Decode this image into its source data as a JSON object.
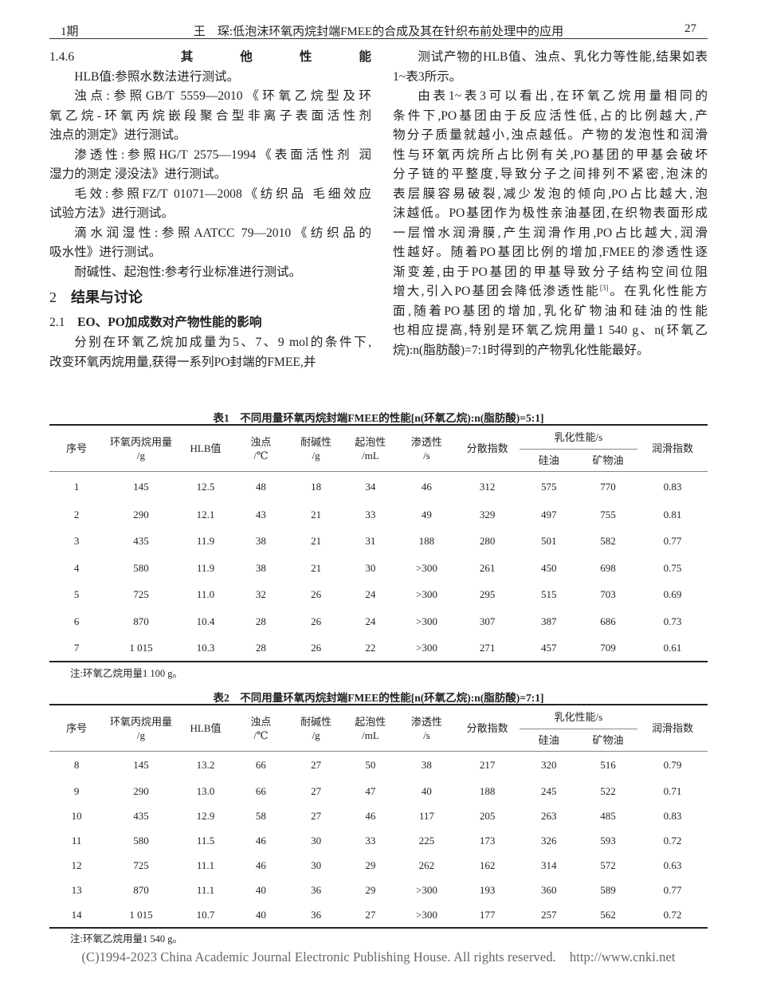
{
  "header": {
    "issue": "1期",
    "running_title": "王　琛:低泡沫环氧丙烷封端FMEE的合成及其在针织布前处理中的应用",
    "page_number": "27"
  },
  "left_column": {
    "section_146": {
      "number": "1.4.6",
      "title": "其他性能"
    },
    "paragraphs_a": [
      [
        "HLB值:参照水数法进行测试。"
      ],
      [
        "浊点:参照GB/T 5559—2010《环氧乙烷型及环",
        "氧乙烷-环氧丙烷嵌段聚合型非离子表面活性剂",
        "浊点的测定》进行测试。"
      ],
      [
        "渗透性:参照HG/T 2575—1994《表面活性剂 润",
        "湿力的测定 浸没法》进行测试。"
      ],
      [
        "毛效:参照FZ/T 01071—2008《纺织品 毛细效应",
        "试验方法》进行测试。"
      ],
      [
        "滴水润湿性:参照AATCC 79—2010《纺织品的",
        "吸水性》进行测试。"
      ],
      [
        "耐碱性、起泡性:参考行业标准进行测试。"
      ]
    ],
    "section_2": {
      "number": "2",
      "title": "结果与讨论"
    },
    "section_21": {
      "number": "2.1",
      "title": "EO、PO加成数对产物性能的影响"
    },
    "paragraphs_b": [
      [
        "分别在环氧乙烷加成量为5、7、9 mol的条件下,",
        "改变环氧丙烷用量,获得一系列PO封端的FMEE,并"
      ]
    ]
  },
  "right_column": {
    "paragraphs": [
      [
        "测试产物的HLB值、浊点、乳化力等性能,结果如表",
        "1~表3所示。"
      ],
      [
        "由表1~表3可以看出,在环氧乙烷用量相同的",
        "条件下,PO基团由于反应活性低,占的比例越大,产",
        "物分子质量就越小,浊点越低。产物的发泡性和润滑",
        "性与环氧丙烷所占比例有关,PO基团的甲基会破坏",
        "分子链的平整度,导致分子之间排列不紧密,泡沫的",
        "表层膜容易破裂,减少发泡的倾向,PO占比越大,泡",
        "沫越低。PO基团作为极性亲油基团,在织物表面形成",
        "一层憎水润滑膜,产生润滑作用,PO占比越大,润滑",
        "性越好。随着PO基团比例的增加,FMEE的渗透性逐",
        "渐变差,由于PO基团的甲基导致分子结构空间位阻",
        "增大,引入PO基团会降低渗透性能[3]。在乳化性能方",
        "面,随着PO基团的增加,乳化矿物油和硅油的性能",
        "也相应提高,特别是环氧乙烷用量1 540 g、n(环氧乙",
        "烷):n(脂肪酸)=7:1时得到的产物乳化性能最好。"
      ]
    ]
  },
  "columns": {
    "no": "序号",
    "po_amount": "环氧丙烷用量",
    "po_unit": "/g",
    "hlb": "HLB值",
    "cloud": "浊点",
    "cloud_unit": "/℃",
    "alkali": "耐碱性",
    "alkali_unit": "/g",
    "foam": "起泡性",
    "foam_unit": "/mL",
    "penetration": "渗透性",
    "penetration_unit": "/s",
    "dispersion": "分散指数",
    "emulsion": "乳化性能/s",
    "silicone": "硅油",
    "mineral": "矿物油",
    "lubricity": "润滑指数"
  },
  "table1": {
    "caption": "表1　不同用量环氧丙烷封端FMEE的性能[n(环氧乙烷):n(脂肪酸)=5:1]",
    "rows": [
      [
        "1",
        "145",
        "12.5",
        "48",
        "18",
        "34",
        "46",
        "312",
        "575",
        "770",
        "0.83"
      ],
      [
        "2",
        "290",
        "12.1",
        "43",
        "21",
        "33",
        "49",
        "329",
        "497",
        "755",
        "0.81"
      ],
      [
        "3",
        "435",
        "11.9",
        "38",
        "21",
        "31",
        "188",
        "280",
        "501",
        "582",
        "0.77"
      ],
      [
        "4",
        "580",
        "11.9",
        "38",
        "21",
        "30",
        ">300",
        "261",
        "450",
        "698",
        "0.75"
      ],
      [
        "5",
        "725",
        "11.0",
        "32",
        "26",
        "24",
        ">300",
        "295",
        "515",
        "703",
        "0.69"
      ],
      [
        "6",
        "870",
        "10.4",
        "28",
        "26",
        "24",
        ">300",
        "307",
        "387",
        "686",
        "0.73"
      ],
      [
        "7",
        "1 015",
        "10.3",
        "28",
        "26",
        "22",
        ">300",
        "271",
        "457",
        "709",
        "0.61"
      ]
    ],
    "note": "注:环氧乙烷用量1 100 g。"
  },
  "table2": {
    "caption": "表2　不同用量环氧丙烷封端FMEE的性能[n(环氧乙烷):n(脂肪酸)=7:1]",
    "rows": [
      [
        "8",
        "145",
        "13.2",
        "66",
        "27",
        "50",
        "38",
        "217",
        "320",
        "516",
        "0.79"
      ],
      [
        "9",
        "290",
        "13.0",
        "66",
        "27",
        "47",
        "40",
        "188",
        "245",
        "522",
        "0.71"
      ],
      [
        "10",
        "435",
        "12.9",
        "58",
        "27",
        "46",
        "117",
        "205",
        "263",
        "485",
        "0.83"
      ],
      [
        "11",
        "580",
        "11.5",
        "46",
        "30",
        "33",
        "225",
        "173",
        "326",
        "593",
        "0.72"
      ],
      [
        "12",
        "725",
        "11.1",
        "46",
        "30",
        "29",
        "262",
        "162",
        "314",
        "572",
        "0.63"
      ],
      [
        "13",
        "870",
        "11.1",
        "40",
        "36",
        "29",
        ">300",
        "193",
        "360",
        "589",
        "0.77"
      ],
      [
        "14",
        "1 015",
        "10.7",
        "40",
        "36",
        "27",
        ">300",
        "177",
        "257",
        "562",
        "0.72"
      ]
    ],
    "note": "注:环氧乙烷用量1 540 g。"
  },
  "footer": {
    "copyright": "(C)1994-2023 China Academic Journal Electronic Publishing House. All rights reserved.",
    "url": "http://www.cnki.net"
  }
}
